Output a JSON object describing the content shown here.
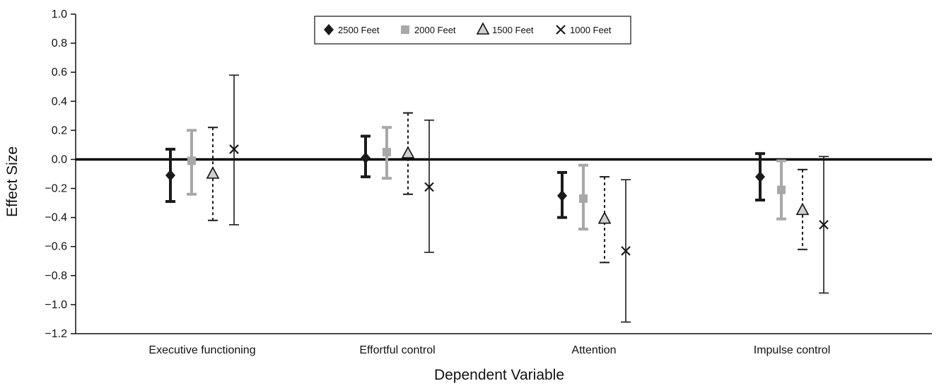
{
  "chart_data": {
    "type": "scatter",
    "subtype": "error-bar",
    "title": "",
    "xlabel": "Dependent Variable",
    "ylabel": "Effect Size",
    "ylim": [
      -1.2,
      1.0
    ],
    "yticks": [
      -1.2,
      -1.0,
      -0.8,
      -0.6,
      -0.4,
      -0.2,
      0.0,
      0.2,
      0.4,
      0.6,
      0.8,
      1.0
    ],
    "ytick_labels": [
      "−1.2",
      "−1.0",
      "−0.8",
      "−0.6",
      "−0.4",
      "−0.2",
      "0.0",
      "0.2",
      "0.4",
      "0.6",
      "0.8",
      "1.0"
    ],
    "categories": [
      "Executive functioning",
      "Effortful control",
      "Attention",
      "Impulse control"
    ],
    "reference_line": 0.0,
    "grid": false,
    "legend_position": "top-center",
    "series": [
      {
        "name": "2500 Feet",
        "marker": "diamond",
        "color": "#1a1a1a",
        "line_style": "solid-thick",
        "values": [
          -0.11,
          0.01,
          -0.25,
          -0.12
        ],
        "lower": [
          -0.29,
          -0.12,
          -0.4,
          -0.28
        ],
        "upper": [
          0.07,
          0.16,
          -0.09,
          0.04
        ]
      },
      {
        "name": "2000 Feet",
        "marker": "square",
        "color": "#a8a8a8",
        "line_style": "solid-thick",
        "values": [
          -0.01,
          0.05,
          -0.27,
          -0.21
        ],
        "lower": [
          -0.24,
          -0.13,
          -0.48,
          -0.41
        ],
        "upper": [
          0.2,
          0.22,
          -0.04,
          -0.01
        ]
      },
      {
        "name": "1500 Feet",
        "marker": "triangle",
        "color": "#1a1a1a",
        "line_style": "dotted",
        "values": [
          -0.1,
          0.04,
          -0.41,
          -0.35
        ],
        "lower": [
          -0.42,
          -0.24,
          -0.71,
          -0.62
        ],
        "upper": [
          0.22,
          0.32,
          -0.12,
          -0.07
        ]
      },
      {
        "name": "1000 Feet",
        "marker": "cross",
        "color": "#1a1a1a",
        "line_style": "solid-thin",
        "values": [
          0.07,
          -0.19,
          -0.63,
          -0.45
        ],
        "lower": [
          -0.45,
          -0.64,
          -1.12,
          -0.92
        ],
        "upper": [
          0.58,
          0.27,
          -0.14,
          0.02
        ]
      }
    ]
  }
}
